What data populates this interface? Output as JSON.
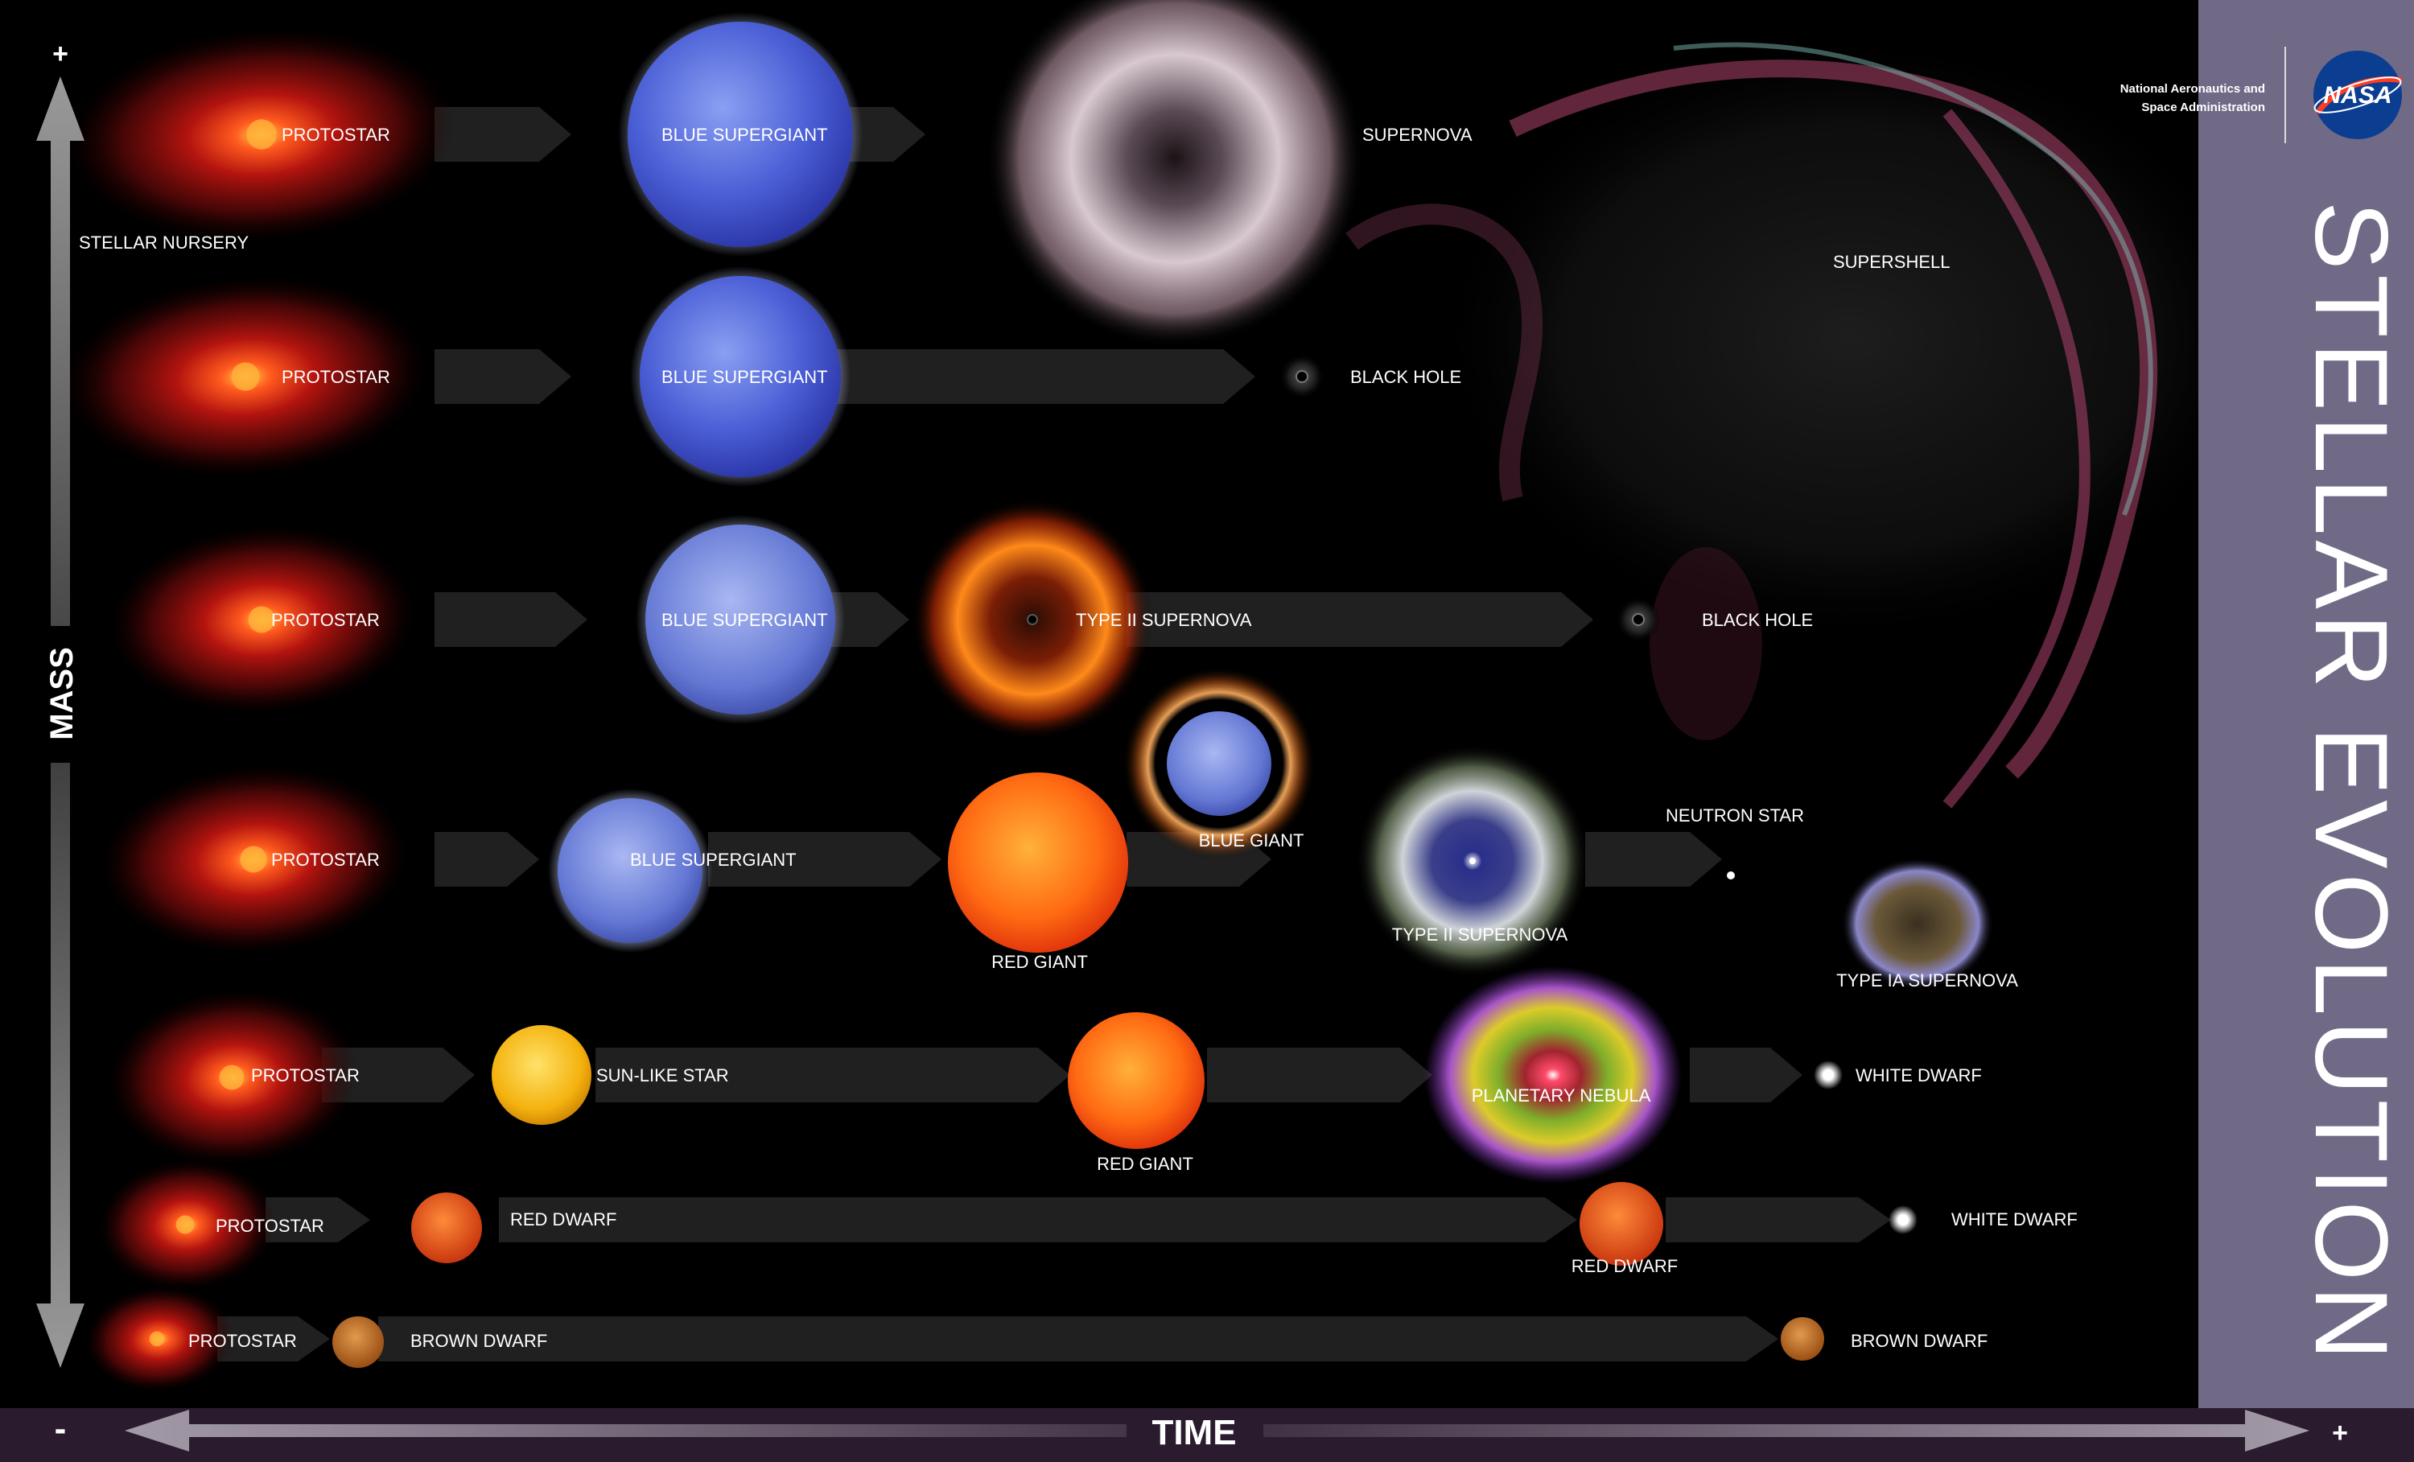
{
  "sidebar": {
    "agency_line1": "National Aeronautics and",
    "agency_line2": "Space Administration",
    "logo_text": "NASA",
    "title": "STELLAR EVOLUTION",
    "panel_color": "#716a86"
  },
  "axes": {
    "mass_label": "MASS",
    "time_label": "TIME",
    "plus": "+",
    "minus": "-"
  },
  "nursery_label": "STELLAR NURSERY",
  "supershell_label": "SUPERSHELL",
  "tracks": [
    {
      "id": "row1",
      "stages": [
        {
          "type": "protostar",
          "label": "PROTOSTAR"
        },
        {
          "type": "blue-supergiant",
          "label": "BLUE SUPERGIANT"
        },
        {
          "type": "supernova",
          "label": "SUPERNOVA"
        }
      ]
    },
    {
      "id": "row2",
      "stages": [
        {
          "type": "protostar",
          "label": "PROTOSTAR"
        },
        {
          "type": "blue-supergiant",
          "label": "BLUE SUPERGIANT"
        },
        {
          "type": "black-hole",
          "label": "BLACK HOLE"
        }
      ]
    },
    {
      "id": "row3",
      "stages": [
        {
          "type": "protostar",
          "label": "PROTOSTAR"
        },
        {
          "type": "blue-supergiant",
          "label": "BLUE SUPERGIANT"
        },
        {
          "type": "type-ii-supernova",
          "label": "TYPE II SUPERNOVA"
        },
        {
          "type": "black-hole",
          "label": "BLACK HOLE"
        }
      ]
    },
    {
      "id": "row4",
      "stages": [
        {
          "type": "protostar",
          "label": "PROTOSTAR"
        },
        {
          "type": "blue-supergiant",
          "label": "BLUE SUPERGIANT"
        },
        {
          "type": "red-giant",
          "label": "RED GIANT"
        },
        {
          "type": "blue-giant",
          "label": "BLUE GIANT"
        },
        {
          "type": "type-ii-supernova",
          "label": "TYPE II SUPERNOVA"
        },
        {
          "type": "neutron-star",
          "label": "NEUTRON STAR"
        },
        {
          "type": "type-ia-supernova",
          "label": "TYPE IA SUPERNOVA"
        }
      ]
    },
    {
      "id": "row5",
      "stages": [
        {
          "type": "protostar",
          "label": "PROTOSTAR"
        },
        {
          "type": "sun-like-star",
          "label": "SUN-LIKE STAR"
        },
        {
          "type": "red-giant",
          "label": "RED GIANT"
        },
        {
          "type": "planetary-nebula",
          "label": "PLANETARY NEBULA"
        },
        {
          "type": "white-dwarf",
          "label": "WHITE DWARF"
        }
      ]
    },
    {
      "id": "row6",
      "stages": [
        {
          "type": "protostar",
          "label": "PROTOSTAR"
        },
        {
          "type": "red-dwarf",
          "label": "RED DWARF"
        },
        {
          "type": "red-dwarf",
          "label": "RED DWARF"
        },
        {
          "type": "white-dwarf",
          "label": "WHITE DWARF"
        }
      ]
    },
    {
      "id": "row7",
      "stages": [
        {
          "type": "protostar",
          "label": "PROTOSTAR"
        },
        {
          "type": "brown-dwarf",
          "label": "BROWN DWARF"
        },
        {
          "type": "brown-dwarf",
          "label": "BROWN DWARF"
        }
      ]
    }
  ]
}
